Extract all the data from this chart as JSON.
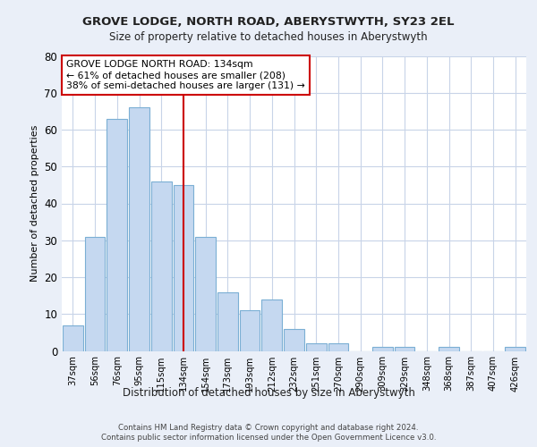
{
  "title1": "GROVE LODGE, NORTH ROAD, ABERYSTWYTH, SY23 2EL",
  "title2": "Size of property relative to detached houses in Aberystwyth",
  "xlabel": "Distribution of detached houses by size in Aberystwyth",
  "ylabel": "Number of detached properties",
  "categories": [
    "37sqm",
    "56sqm",
    "76sqm",
    "95sqm",
    "115sqm",
    "134sqm",
    "154sqm",
    "173sqm",
    "193sqm",
    "212sqm",
    "232sqm",
    "251sqm",
    "270sqm",
    "290sqm",
    "309sqm",
    "329sqm",
    "348sqm",
    "368sqm",
    "387sqm",
    "407sqm",
    "426sqm"
  ],
  "values": [
    7,
    31,
    63,
    66,
    46,
    45,
    31,
    16,
    11,
    14,
    6,
    2,
    2,
    0,
    1,
    1,
    0,
    1,
    0,
    0,
    1
  ],
  "bar_color": "#c5d8f0",
  "bar_edge_color": "#7bafd4",
  "reference_line_x": 5,
  "annotation_title": "GROVE LODGE NORTH ROAD: 134sqm",
  "annotation_line1": "← 61% of detached houses are smaller (208)",
  "annotation_line2": "38% of semi-detached houses are larger (131) →",
  "annotation_box_color": "#ffffff",
  "annotation_box_edge_color": "#cc0000",
  "vline_color": "#cc0000",
  "ylim": [
    0,
    80
  ],
  "yticks": [
    0,
    10,
    20,
    30,
    40,
    50,
    60,
    70,
    80
  ],
  "grid_color": "#c8d4e8",
  "footer1": "Contains HM Land Registry data © Crown copyright and database right 2024.",
  "footer2": "Contains public sector information licensed under the Open Government Licence v3.0.",
  "bg_color": "#eaeff8",
  "plot_bg_color": "#ffffff"
}
